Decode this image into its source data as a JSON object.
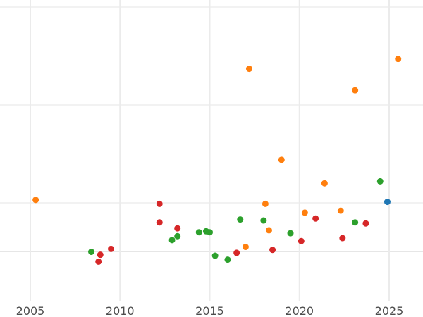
{
  "chart_data": {
    "type": "scatter",
    "title": "",
    "xlabel": "",
    "ylabel": "",
    "xlim": [
      2004.2,
      2026.2
    ],
    "ylim": [
      0,
      31
    ],
    "x_ticks": [
      2005,
      2010,
      2015,
      2020,
      2025
    ],
    "x_tick_labels": [
      "2005",
      "2010",
      "2015",
      "2020",
      "2025"
    ],
    "y_gridlines": [
      5,
      10,
      15,
      20,
      25,
      30
    ],
    "grid": true,
    "legend": "none",
    "series": [
      {
        "color": "#2ca02c",
        "points": [
          {
            "x": 2008.4,
            "y": 5.0
          },
          {
            "x": 2012.9,
            "y": 6.2
          },
          {
            "x": 2013.2,
            "y": 6.6
          },
          {
            "x": 2014.4,
            "y": 7.0
          },
          {
            "x": 2014.8,
            "y": 7.1
          },
          {
            "x": 2015.0,
            "y": 7.0
          },
          {
            "x": 2015.3,
            "y": 4.6
          },
          {
            "x": 2016.0,
            "y": 4.2
          },
          {
            "x": 2016.7,
            "y": 8.3
          },
          {
            "x": 2018.0,
            "y": 8.2
          },
          {
            "x": 2019.5,
            "y": 6.9
          },
          {
            "x": 2023.1,
            "y": 8.0
          },
          {
            "x": 2024.5,
            "y": 12.2
          }
        ]
      },
      {
        "color": "#d62728",
        "points": [
          {
            "x": 2008.8,
            "y": 4.0
          },
          {
            "x": 2008.9,
            "y": 4.7
          },
          {
            "x": 2009.5,
            "y": 5.3
          },
          {
            "x": 2012.2,
            "y": 9.9
          },
          {
            "x": 2012.2,
            "y": 8.0
          },
          {
            "x": 2013.2,
            "y": 7.4
          },
          {
            "x": 2016.5,
            "y": 4.9
          },
          {
            "x": 2018.5,
            "y": 5.2
          },
          {
            "x": 2020.1,
            "y": 6.1
          },
          {
            "x": 2020.9,
            "y": 8.4
          },
          {
            "x": 2022.4,
            "y": 6.4
          },
          {
            "x": 2023.7,
            "y": 7.9
          }
        ]
      },
      {
        "color": "#ff7f0e",
        "points": [
          {
            "x": 2005.3,
            "y": 10.3
          },
          {
            "x": 2017.0,
            "y": 5.5
          },
          {
            "x": 2017.2,
            "y": 23.7
          },
          {
            "x": 2018.1,
            "y": 9.9
          },
          {
            "x": 2018.3,
            "y": 7.2
          },
          {
            "x": 2019.0,
            "y": 14.4
          },
          {
            "x": 2020.3,
            "y": 9.0
          },
          {
            "x": 2021.4,
            "y": 12.0
          },
          {
            "x": 2022.3,
            "y": 9.2
          },
          {
            "x": 2023.1,
            "y": 21.5
          },
          {
            "x": 2025.5,
            "y": 24.7
          }
        ]
      },
      {
        "color": "#1f77b4",
        "points": [
          {
            "x": 2024.9,
            "y": 10.1
          }
        ]
      }
    ]
  }
}
